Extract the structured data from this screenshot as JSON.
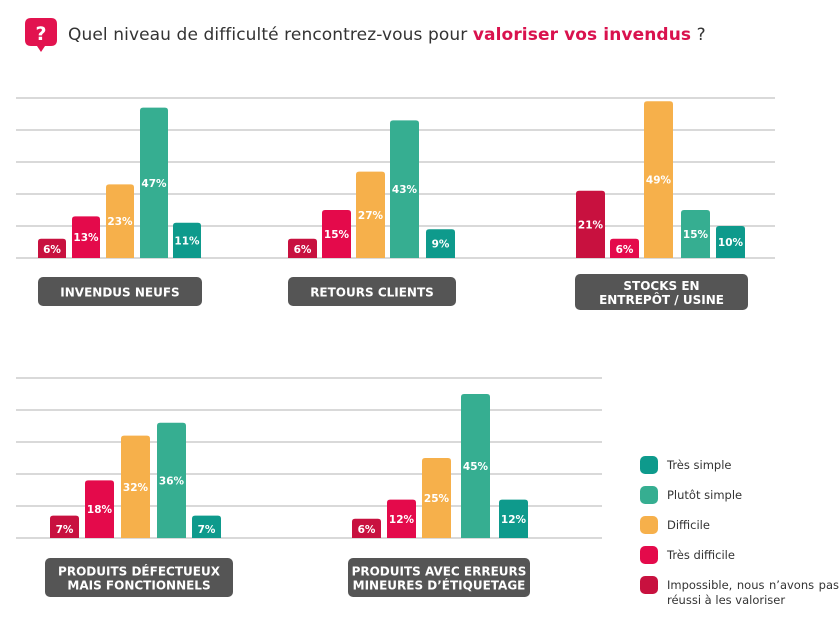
{
  "header": {
    "icon": "question-bubble-icon",
    "title_prefix": "Quel niveau de difficulté rencontrez-vous pour ",
    "title_highlight": "valoriser vos invendus",
    "title_suffix": " ?"
  },
  "colors": {
    "impossible": "#c8113f",
    "tres_difficile": "#e40a4b",
    "difficile": "#f6b04b",
    "plutot_simple": "#36ae91",
    "tres_simple": "#0e9a8c",
    "label_box": "#555555",
    "gridline": "#d9d9d9",
    "accent": "#d9124e"
  },
  "legend": [
    {
      "key": "tres_simple",
      "label": "Très simple"
    },
    {
      "key": "plutot_simple",
      "label": "Plutôt simple"
    },
    {
      "key": "difficile",
      "label": "Difficile"
    },
    {
      "key": "tres_difficile",
      "label": "Très difficile"
    },
    {
      "key": "impossible",
      "label": "Impossible,  nous  n’avons pas réussi à les valoriser"
    }
  ],
  "chart_data": {
    "type": "bar",
    "title": "Quel niveau de difficulté rencontrez-vous pour valoriser vos invendus ?",
    "ylim": [
      0,
      50
    ],
    "grid": true,
    "legend_position": "bottom-right",
    "series_order": [
      "impossible",
      "tres_difficile",
      "difficile",
      "plutot_simple",
      "tres_simple"
    ],
    "series_names": {
      "impossible": "Impossible, nous n’avons pas réussi à les valoriser",
      "tres_difficile": "Très difficile",
      "difficile": "Difficile",
      "plutot_simple": "Plutôt simple",
      "tres_simple": "Très simple"
    },
    "groups": [
      {
        "category": "INVENDUS NEUFS",
        "label_lines": [
          "INVENDUS NEUFS"
        ],
        "values": {
          "impossible": 6,
          "tres_difficile": 13,
          "difficile": 23,
          "plutot_simple": 47,
          "tres_simple": 11
        }
      },
      {
        "category": "RETOURS CLIENTS",
        "label_lines": [
          "RETOURS CLIENTS"
        ],
        "values": {
          "impossible": 6,
          "tres_difficile": 15,
          "difficile": 27,
          "plutot_simple": 43,
          "tres_simple": 9
        }
      },
      {
        "category": "STOCKS EN ENTREPÔT / USINE",
        "label_lines": [
          "STOCKS EN",
          "ENTREPÔT / USINE"
        ],
        "values": {
          "impossible": 21,
          "tres_difficile": 6,
          "difficile": 49,
          "plutot_simple": 15,
          "tres_simple": 10
        }
      },
      {
        "category": "PRODUITS DÉFECTUEUX MAIS FONCTIONNELS",
        "label_lines": [
          "PRODUITS DÉFECTUEUX",
          "MAIS FONCTIONNELS"
        ],
        "values": {
          "impossible": 7,
          "tres_difficile": 18,
          "difficile": 32,
          "plutot_simple": 36,
          "tres_simple": 7
        }
      },
      {
        "category": "PRODUITS AVEC ERREURS MINEURES D’ÉTIQUETAGE",
        "label_lines": [
          "PRODUITS AVEC ERREURS",
          "MINEURES D’ÉTIQUETAGE"
        ],
        "values": {
          "impossible": 6,
          "tres_difficile": 12,
          "difficile": 25,
          "plutot_simple": 45,
          "tres_simple": 12
        }
      }
    ],
    "value_suffix": "%"
  }
}
